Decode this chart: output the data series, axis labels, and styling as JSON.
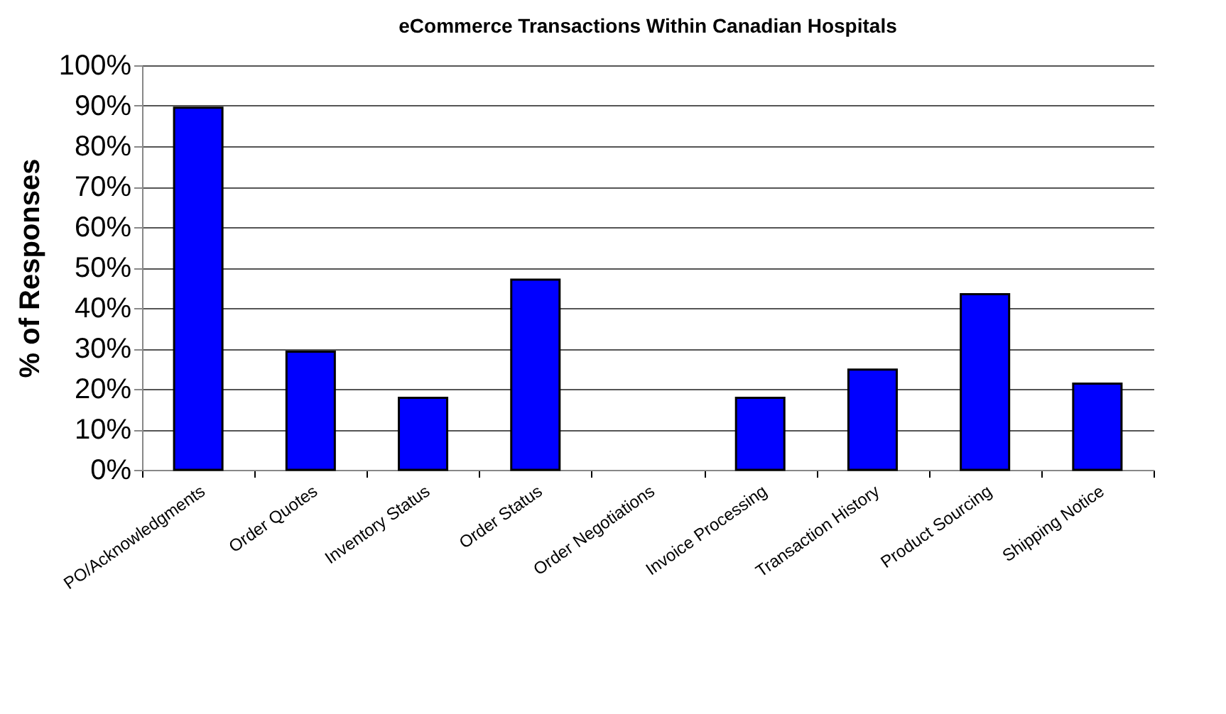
{
  "chart_data": {
    "type": "bar",
    "title": "eCommerce Transactions Within Canadian Hospitals",
    "ylabel": "% of Responses",
    "categories": [
      "PO/Acknowledgments",
      "Order Quotes",
      "Inventory Status",
      "Order Status",
      "Order Negotiations",
      "Invoice Processing",
      "Transaction History",
      "Product Sourcing",
      "Shipping Notice"
    ],
    "values": [
      89.5,
      29.2,
      17.8,
      47,
      0,
      17.8,
      24.8,
      43.4,
      21.3
    ],
    "color": "#0000ff",
    "ylim": [
      0,
      100
    ],
    "yticks": [
      {
        "value": 0,
        "label": "0%"
      },
      {
        "value": 10,
        "label": "10%"
      },
      {
        "value": 20,
        "label": "20%"
      },
      {
        "value": 30,
        "label": "30%"
      },
      {
        "value": 40,
        "label": "40%"
      },
      {
        "value": 50,
        "label": "50%"
      },
      {
        "value": 60,
        "label": "60%"
      },
      {
        "value": 70,
        "label": "70%"
      },
      {
        "value": 80,
        "label": "80%"
      },
      {
        "value": 90,
        "label": "90%"
      },
      {
        "value": 100,
        "label": "100%"
      }
    ],
    "grid": "y"
  }
}
